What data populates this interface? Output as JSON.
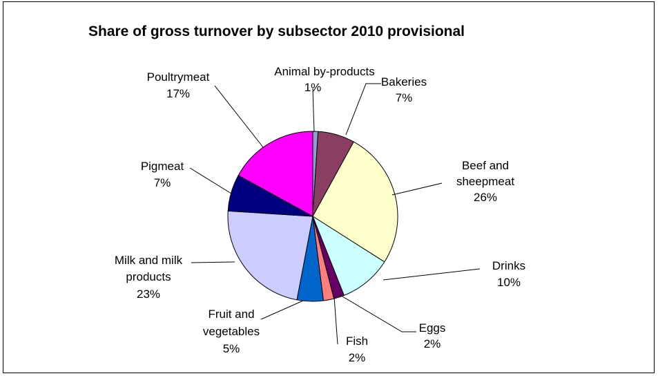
{
  "chart_data": {
    "type": "pie",
    "title": "Share of gross turnover by subsector 2010 provisional",
    "slices": [
      {
        "name": "Animal by-products",
        "value": 1,
        "label": "1%",
        "color": "#8fa0cc"
      },
      {
        "name": "Bakeries",
        "value": 7,
        "label": "7%",
        "color": "#8c3d64"
      },
      {
        "name": "Beef and sheepmeat",
        "value": 26,
        "label": "26%",
        "color": "#ffffcc"
      },
      {
        "name": "Drinks",
        "value": 10,
        "label": "10%",
        "color": "#ccffff"
      },
      {
        "name": "Eggs",
        "value": 2,
        "label": "2%",
        "color": "#660066"
      },
      {
        "name": "Fish",
        "value": 2,
        "label": "2%",
        "color": "#ff7f7f"
      },
      {
        "name": "Fruit and vegetables",
        "value": 5,
        "label": "5%",
        "color": "#0066cc"
      },
      {
        "name": "Milk and milk products",
        "value": 23,
        "label": "23%",
        "color": "#ccccff"
      },
      {
        "name": "Pigmeat",
        "value": 7,
        "label": "7%",
        "color": "#000080"
      },
      {
        "name": "Poultrymeat",
        "value": 17,
        "label": "17%",
        "color": "#ff00ff"
      }
    ]
  }
}
